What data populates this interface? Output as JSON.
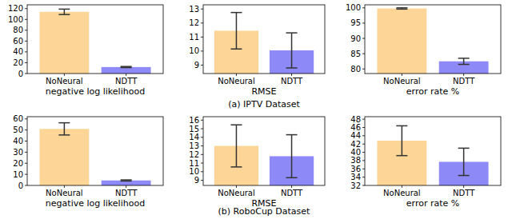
{
  "chart_data": [
    {
      "type": "bar",
      "categories": [
        "NoNeural",
        "NDTT"
      ],
      "values": [
        114,
        12
      ],
      "errors": [
        5,
        1
      ],
      "colors": [
        "#fdd596",
        "#8d89f6"
      ],
      "x_label": "negative log likelihood",
      "ylim": [
        0,
        127
      ],
      "yticks": [
        0,
        20,
        40,
        60,
        80,
        100,
        120
      ]
    },
    {
      "type": "bar",
      "categories": [
        "NoNeural",
        "NDTT"
      ],
      "values": [
        11.45,
        10.05
      ],
      "errors": [
        1.3,
        1.25
      ],
      "colors": [
        "#fdd596",
        "#8d89f6"
      ],
      "x_label": "RMSE",
      "ylim": [
        8.4,
        13.3
      ],
      "yticks": [
        9,
        10,
        11,
        12,
        13
      ]
    },
    {
      "type": "bar",
      "categories": [
        "NoNeural",
        "NDTT"
      ],
      "values": [
        99.8,
        82.5
      ],
      "errors": [
        0.2,
        1
      ],
      "colors": [
        "#fdd596",
        "#8d89f6"
      ],
      "x_label": "error rate %",
      "ylim": [
        78.5,
        101
      ],
      "yticks": [
        80,
        85,
        90,
        95,
        100
      ]
    },
    {
      "type": "bar",
      "categories": [
        "NoNeural",
        "NDTT"
      ],
      "values": [
        51,
        4.5
      ],
      "errors": [
        5.5,
        0.5
      ],
      "colors": [
        "#fdd596",
        "#8d89f6"
      ],
      "x_label": "negative log likelihood",
      "ylim": [
        0,
        62
      ],
      "yticks": [
        0,
        10,
        20,
        30,
        40,
        50,
        60
      ]
    },
    {
      "type": "bar",
      "categories": [
        "NoNeural",
        "NDTT"
      ],
      "values": [
        13,
        11.8
      ],
      "errors": [
        2.45,
        2.5
      ],
      "colors": [
        "#fdd596",
        "#8d89f6"
      ],
      "x_label": "RMSE",
      "ylim": [
        8.4,
        16.4
      ],
      "yticks": [
        9,
        10,
        11,
        12,
        13,
        14,
        15,
        16
      ]
    },
    {
      "type": "bar",
      "categories": [
        "NoNeural",
        "NDTT"
      ],
      "values": [
        42.8,
        37.7
      ],
      "errors": [
        3.6,
        3.3
      ],
      "colors": [
        "#fdd596",
        "#8d89f6"
      ],
      "x_label": "error rate %",
      "ylim": [
        32,
        48.6
      ],
      "yticks": [
        32,
        34,
        36,
        38,
        40,
        42,
        44,
        46,
        48
      ]
    }
  ],
  "captions": [
    "(a) IPTV Dataset",
    "(b) RoboCup Dataset"
  ]
}
